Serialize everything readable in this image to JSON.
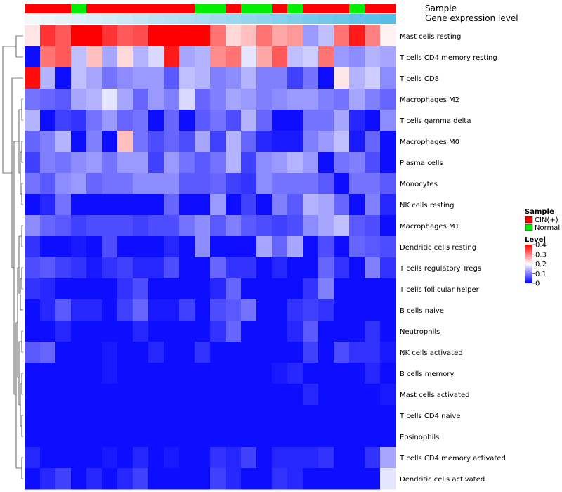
{
  "chart_data": {
    "type": "heatmap",
    "annotation_rows": [
      "Sample",
      "Gene expression level"
    ],
    "rows": [
      "Mast cells resting",
      "T cells CD4 memory resting",
      "T cells CD8",
      "Macrophages M2",
      "T cells gamma delta",
      "Macrophages M0",
      "Plasma cells",
      "Monocytes",
      "NK cells resting",
      "Macrophages M1",
      "Dendritic cells resting",
      "T cells regulatory  Tregs",
      "T cells follicular helper",
      "B cells naive",
      "Neutrophils",
      "NK cells activated",
      "B cells memory",
      "Mast cells activated",
      "T cells CD4 naive",
      "Eosinophils",
      "T cells CD4 memory activated",
      "Dendritic cells activated"
    ],
    "sample_groups": [
      "CIN(+)",
      "CIN(+)",
      "CIN(+)",
      "Normal",
      "CIN(+)",
      "CIN(+)",
      "CIN(+)",
      "CIN(+)",
      "CIN(+)",
      "CIN(+)",
      "CIN(+)",
      "Normal",
      "Normal",
      "CIN(+)",
      "Normal",
      "Normal",
      "CIN(+)",
      "Normal",
      "CIN(+)",
      "CIN(+)",
      "CIN(+)",
      "Normal",
      "CIN(+)",
      "CIN(+)"
    ],
    "gene_expression_level": [
      0.02,
      0.04,
      0.06,
      0.08,
      0.1,
      0.12,
      0.14,
      0.16,
      0.18,
      0.2,
      0.22,
      0.24,
      0.26,
      0.28,
      0.3,
      0.32,
      0.34,
      0.36,
      0.38,
      0.4,
      0.42,
      0.44,
      0.46,
      0.48
    ],
    "values": [
      [
        0.22,
        0.36,
        0.33,
        0.4,
        0.4,
        0.36,
        0.33,
        0.34,
        0.4,
        0.4,
        0.4,
        0.4,
        0.31,
        0.23,
        0.25,
        0.31,
        0.27,
        0.28,
        0.12,
        0.15,
        0.31,
        0.38,
        0.3,
        0.21
      ],
      [
        0.01,
        0.31,
        0.33,
        0.15,
        0.25,
        0.13,
        0.23,
        0.14,
        0.17,
        0.38,
        0.13,
        0.14,
        0.29,
        0.31,
        0.18,
        0.27,
        0.33,
        0.15,
        0.16,
        0.31,
        0.12,
        0.11,
        0.14,
        0.13
      ],
      [
        0.39,
        0.14,
        0.01,
        0.15,
        0.13,
        0.09,
        0.11,
        0.12,
        0.12,
        0.07,
        0.15,
        0.14,
        0.1,
        0.11,
        0.14,
        0.1,
        0.1,
        0.05,
        0.09,
        0.01,
        0.22,
        0.14,
        0.16,
        0.11
      ],
      [
        0.09,
        0.08,
        0.07,
        0.13,
        0.14,
        0.18,
        0.13,
        0.08,
        0.12,
        0.1,
        0.17,
        0.08,
        0.1,
        0.13,
        0.12,
        0.1,
        0.11,
        0.12,
        0.12,
        0.1,
        0.09,
        0.13,
        0.1,
        0.08
      ],
      [
        0.14,
        0.01,
        0.05,
        0.04,
        0.09,
        0.12,
        0.08,
        0.09,
        0.01,
        0.08,
        0.01,
        0.07,
        0.09,
        0.06,
        0.14,
        0.08,
        0.01,
        0.01,
        0.09,
        0.09,
        0.13,
        0.03,
        0.01,
        0.11
      ],
      [
        0.08,
        0.1,
        0.14,
        0.01,
        0.1,
        0.01,
        0.25,
        0.09,
        0.06,
        0.08,
        0.06,
        0.13,
        0.05,
        0.14,
        0.08,
        0.03,
        0.02,
        0.02,
        0.1,
        0.12,
        0.15,
        0.02,
        0.08,
        0.01
      ],
      [
        0.05,
        0.1,
        0.09,
        0.11,
        0.12,
        0.09,
        0.12,
        0.12,
        0.05,
        0.12,
        0.09,
        0.07,
        0.09,
        0.14,
        0.05,
        0.11,
        0.12,
        0.14,
        0.12,
        0.01,
        0.09,
        0.1,
        0.06,
        0.01
      ],
      [
        0.09,
        0.07,
        0.11,
        0.12,
        0.08,
        0.09,
        0.09,
        0.11,
        0.11,
        0.11,
        0.07,
        0.07,
        0.08,
        0.05,
        0.04,
        0.11,
        0.09,
        0.09,
        0.09,
        0.07,
        0.01,
        0.09,
        0.09,
        0.07
      ],
      [
        0.01,
        0.03,
        0.09,
        0.01,
        0.01,
        0.01,
        0.01,
        0.01,
        0.01,
        0.08,
        0.01,
        0.01,
        0.12,
        0.01,
        0.05,
        0.01,
        0.1,
        0.07,
        0.14,
        0.13,
        0.08,
        0.01,
        0.1,
        0.03
      ],
      [
        0.11,
        0.08,
        0.07,
        0.05,
        0.06,
        0.06,
        0.06,
        0.05,
        0.06,
        0.06,
        0.09,
        0.11,
        0.07,
        0.1,
        0.07,
        0.06,
        0.05,
        0.06,
        0.11,
        0.13,
        0.15,
        0.07,
        0.06,
        0.01
      ],
      [
        0.04,
        0.01,
        0.01,
        0.02,
        0.01,
        0.06,
        0.01,
        0.01,
        0.01,
        0.03,
        0.01,
        0.11,
        0.01,
        0.01,
        0.01,
        0.13,
        0.08,
        0.13,
        0.01,
        0.06,
        0.01,
        0.08,
        0.07,
        0.06
      ],
      [
        0.06,
        0.07,
        0.05,
        0.04,
        0.02,
        0.04,
        0.05,
        0.03,
        0.03,
        0.06,
        0.01,
        0.01,
        0.08,
        0.04,
        0.04,
        0.01,
        0.03,
        0.01,
        0.01,
        0.08,
        0.04,
        0.01,
        0.1,
        0.04
      ],
      [
        0.04,
        0.03,
        0.01,
        0.01,
        0.01,
        0.01,
        0.04,
        0.06,
        0.01,
        0.01,
        0.01,
        0.01,
        0.03,
        0.08,
        0.01,
        0.01,
        0.01,
        0.01,
        0.04,
        0.1,
        0.01,
        0.01,
        0.01,
        0.01
      ],
      [
        0.01,
        0.03,
        0.07,
        0.03,
        0.03,
        0.01,
        0.05,
        0.08,
        0.02,
        0.02,
        0.05,
        0.01,
        0.06,
        0.07,
        0.09,
        0.01,
        0.01,
        0.04,
        0.05,
        0.04,
        0.01,
        0.01,
        0.01,
        0.01
      ],
      [
        0.01,
        0.01,
        0.03,
        0.01,
        0.01,
        0.01,
        0.01,
        0.03,
        0.01,
        0.01,
        0.01,
        0.01,
        0.04,
        0.08,
        0.01,
        0.01,
        0.01,
        0.03,
        0.07,
        0.01,
        0.01,
        0.01,
        0.04,
        0.01
      ],
      [
        0.07,
        0.08,
        0.01,
        0.01,
        0.01,
        0.02,
        0.01,
        0.01,
        0.03,
        0.01,
        0.01,
        0.04,
        0.01,
        0.01,
        0.01,
        0.01,
        0.01,
        0.01,
        0.05,
        0.01,
        0.06,
        0.04,
        0.04,
        0.02
      ],
      [
        0.01,
        0.01,
        0.01,
        0.01,
        0.01,
        0.02,
        0.01,
        0.01,
        0.01,
        0.01,
        0.01,
        0.01,
        0.01,
        0.01,
        0.01,
        0.01,
        0.02,
        0.03,
        0.01,
        0.01,
        0.01,
        0.01,
        0.03,
        0.01
      ],
      [
        0.01,
        0.01,
        0.01,
        0.01,
        0.01,
        0.01,
        0.01,
        0.01,
        0.01,
        0.01,
        0.01,
        0.01,
        0.01,
        0.01,
        0.01,
        0.01,
        0.01,
        0.01,
        0.03,
        0.01,
        0.01,
        0.01,
        0.01,
        0.02
      ],
      [
        0.01,
        0.01,
        0.01,
        0.01,
        0.01,
        0.01,
        0.01,
        0.01,
        0.01,
        0.01,
        0.01,
        0.01,
        0.01,
        0.01,
        0.01,
        0.01,
        0.01,
        0.01,
        0.01,
        0.01,
        0.01,
        0.01,
        0.01,
        0.01
      ],
      [
        0.01,
        0.01,
        0.01,
        0.01,
        0.01,
        0.01,
        0.01,
        0.01,
        0.01,
        0.01,
        0.01,
        0.01,
        0.01,
        0.01,
        0.01,
        0.01,
        0.01,
        0.01,
        0.01,
        0.01,
        0.01,
        0.01,
        0.01,
        0.01
      ],
      [
        0.03,
        0.01,
        0.01,
        0.01,
        0.01,
        0.02,
        0.01,
        0.03,
        0.01,
        0.02,
        0.01,
        0.01,
        0.04,
        0.03,
        0.05,
        0.01,
        0.03,
        0.03,
        0.03,
        0.04,
        0.01,
        0.01,
        0.04,
        0.13
      ],
      [
        0.01,
        0.03,
        0.05,
        0.01,
        0.03,
        0.01,
        0.03,
        0.05,
        0.01,
        0.01,
        0.01,
        0.01,
        0.05,
        0.03,
        0.01,
        0.01,
        0.04,
        0.03,
        0.01,
        0.01,
        0.01,
        0.01,
        0.01,
        0.18
      ]
    ],
    "legend_sample": {
      "title": "Sample",
      "entries": [
        {
          "label": "CIN(+)",
          "color": "#ff0000"
        },
        {
          "label": "Normal",
          "color": "#00ee00"
        }
      ]
    },
    "legend_level": {
      "title": "Level",
      "ticks": [
        "0.4",
        "0.3",
        "0.2",
        "0.1",
        "0"
      ],
      "range": [
        0,
        0.4
      ]
    },
    "colors": {
      "low": "#0000ff",
      "mid": "#ffffff",
      "high": "#ff0000",
      "expr_low": "#f3f8fb",
      "expr_high": "#56bde8"
    }
  }
}
